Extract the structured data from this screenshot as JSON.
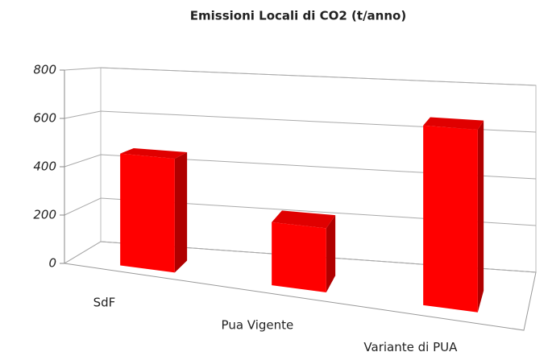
{
  "chart_data": {
    "type": "bar3d",
    "title": "Emissioni Locali di CO2 (t/anno)",
    "categories": [
      "SdF",
      "Pua Vigente",
      "Variante di PUA"
    ],
    "values": [
      465,
      250,
      680
    ],
    "color": "#ff0000",
    "ylim": [
      0,
      800
    ],
    "yticks": [
      0,
      200,
      400,
      600,
      800
    ],
    "grid": true
  }
}
